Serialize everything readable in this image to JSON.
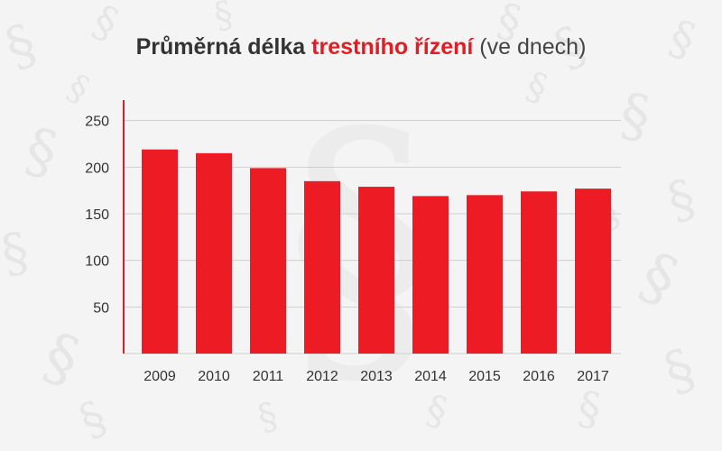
{
  "colors": {
    "accent": "#e31c23",
    "bar": "#ed1c24",
    "grid": "#cfcfcf",
    "axis": "#e31c23",
    "text": "#333333",
    "background": "#f4f4f4",
    "watermark": "#e6e6e6"
  },
  "title": {
    "main": "Průměrná délka",
    "accent": "trestního řízení",
    "unit": "(ve dnech)"
  },
  "background_icon": "section-sign-icon",
  "chart_data": {
    "type": "bar",
    "title": "Průměrná délka trestního řízení (ve dnech)",
    "categories": [
      "2009",
      "2010",
      "2011",
      "2012",
      "2013",
      "2014",
      "2015",
      "2016",
      "2017"
    ],
    "values": [
      219,
      215,
      199,
      185,
      179,
      169,
      170,
      174,
      177
    ],
    "ylim": [
      0,
      270
    ],
    "yticks": [
      50,
      100,
      150,
      200,
      250
    ],
    "grid": true,
    "xlabel": "",
    "ylabel": ""
  }
}
